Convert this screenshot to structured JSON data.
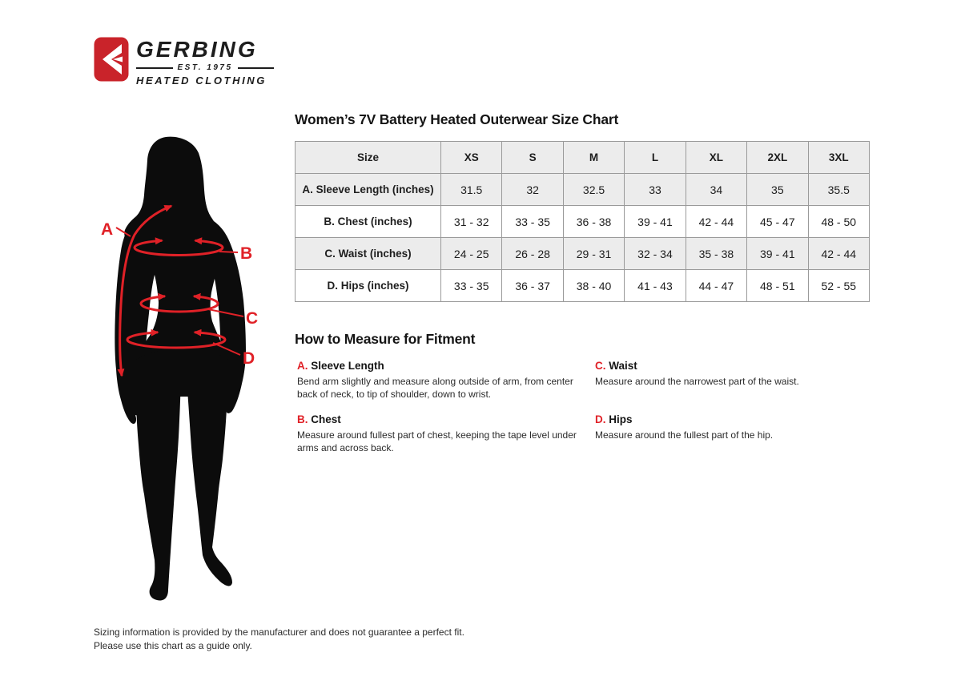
{
  "colors": {
    "brand_red": "#c9232a",
    "accent_red": "#e02127",
    "table_border": "#9a9a9a",
    "table_alt_bg": "#ececec",
    "text": "#1b1b1b"
  },
  "logo": {
    "name": "GERBING",
    "established": "EST. 1975",
    "tagline": "HEATED CLOTHING",
    "icon": "gerbing-arrow-icon"
  },
  "title": "Women’s 7V Battery Heated Outerwear Size Chart",
  "size_table": {
    "columns": [
      "Size",
      "XS",
      "S",
      "M",
      "L",
      "XL",
      "2XL",
      "3XL"
    ],
    "rows": [
      {
        "label": "A. Sleeve Length (inches)",
        "values": [
          "31.5",
          "32",
          "32.5",
          "33",
          "34",
          "35",
          "35.5"
        ]
      },
      {
        "label": "B. Chest (inches)",
        "values": [
          "31 - 32",
          "33 - 35",
          "36 - 38",
          "39 - 41",
          "42 - 44",
          "45 - 47",
          "48 - 50"
        ]
      },
      {
        "label": "C. Waist (inches)",
        "values": [
          "24 - 25",
          "26 - 28",
          "29 - 31",
          "32 - 34",
          "35 - 38",
          "39 - 41",
          "42 - 44"
        ]
      },
      {
        "label": "D. Hips (inches)",
        "values": [
          "33 - 35",
          "36 - 37",
          "38 - 40",
          "41 - 43",
          "44 - 47",
          "48 - 51",
          "52 - 55"
        ]
      }
    ]
  },
  "measure": {
    "heading": "How to Measure for Fitment",
    "items": [
      {
        "letter": "A.",
        "title": "Sleeve Length",
        "description": "Bend arm slightly and measure along outside of arm, from center back of neck, to tip of shoulder, down to wrist."
      },
      {
        "letter": "B.",
        "title": "Chest",
        "description": "Measure around fullest part of chest, keeping the tape level under arms and across back."
      },
      {
        "letter": "C.",
        "title": "Waist",
        "description": "Measure around the narrowest part of the waist."
      },
      {
        "letter": "D.",
        "title": "Hips",
        "description": "Measure around the fullest part of the hip."
      }
    ]
  },
  "figure": {
    "labels": [
      "A",
      "B",
      "C",
      "D"
    ]
  },
  "footer": {
    "line1": "Sizing information is provided by the manufacturer and does not guarantee a perfect fit.",
    "line2": "Please use this chart as a guide only."
  }
}
